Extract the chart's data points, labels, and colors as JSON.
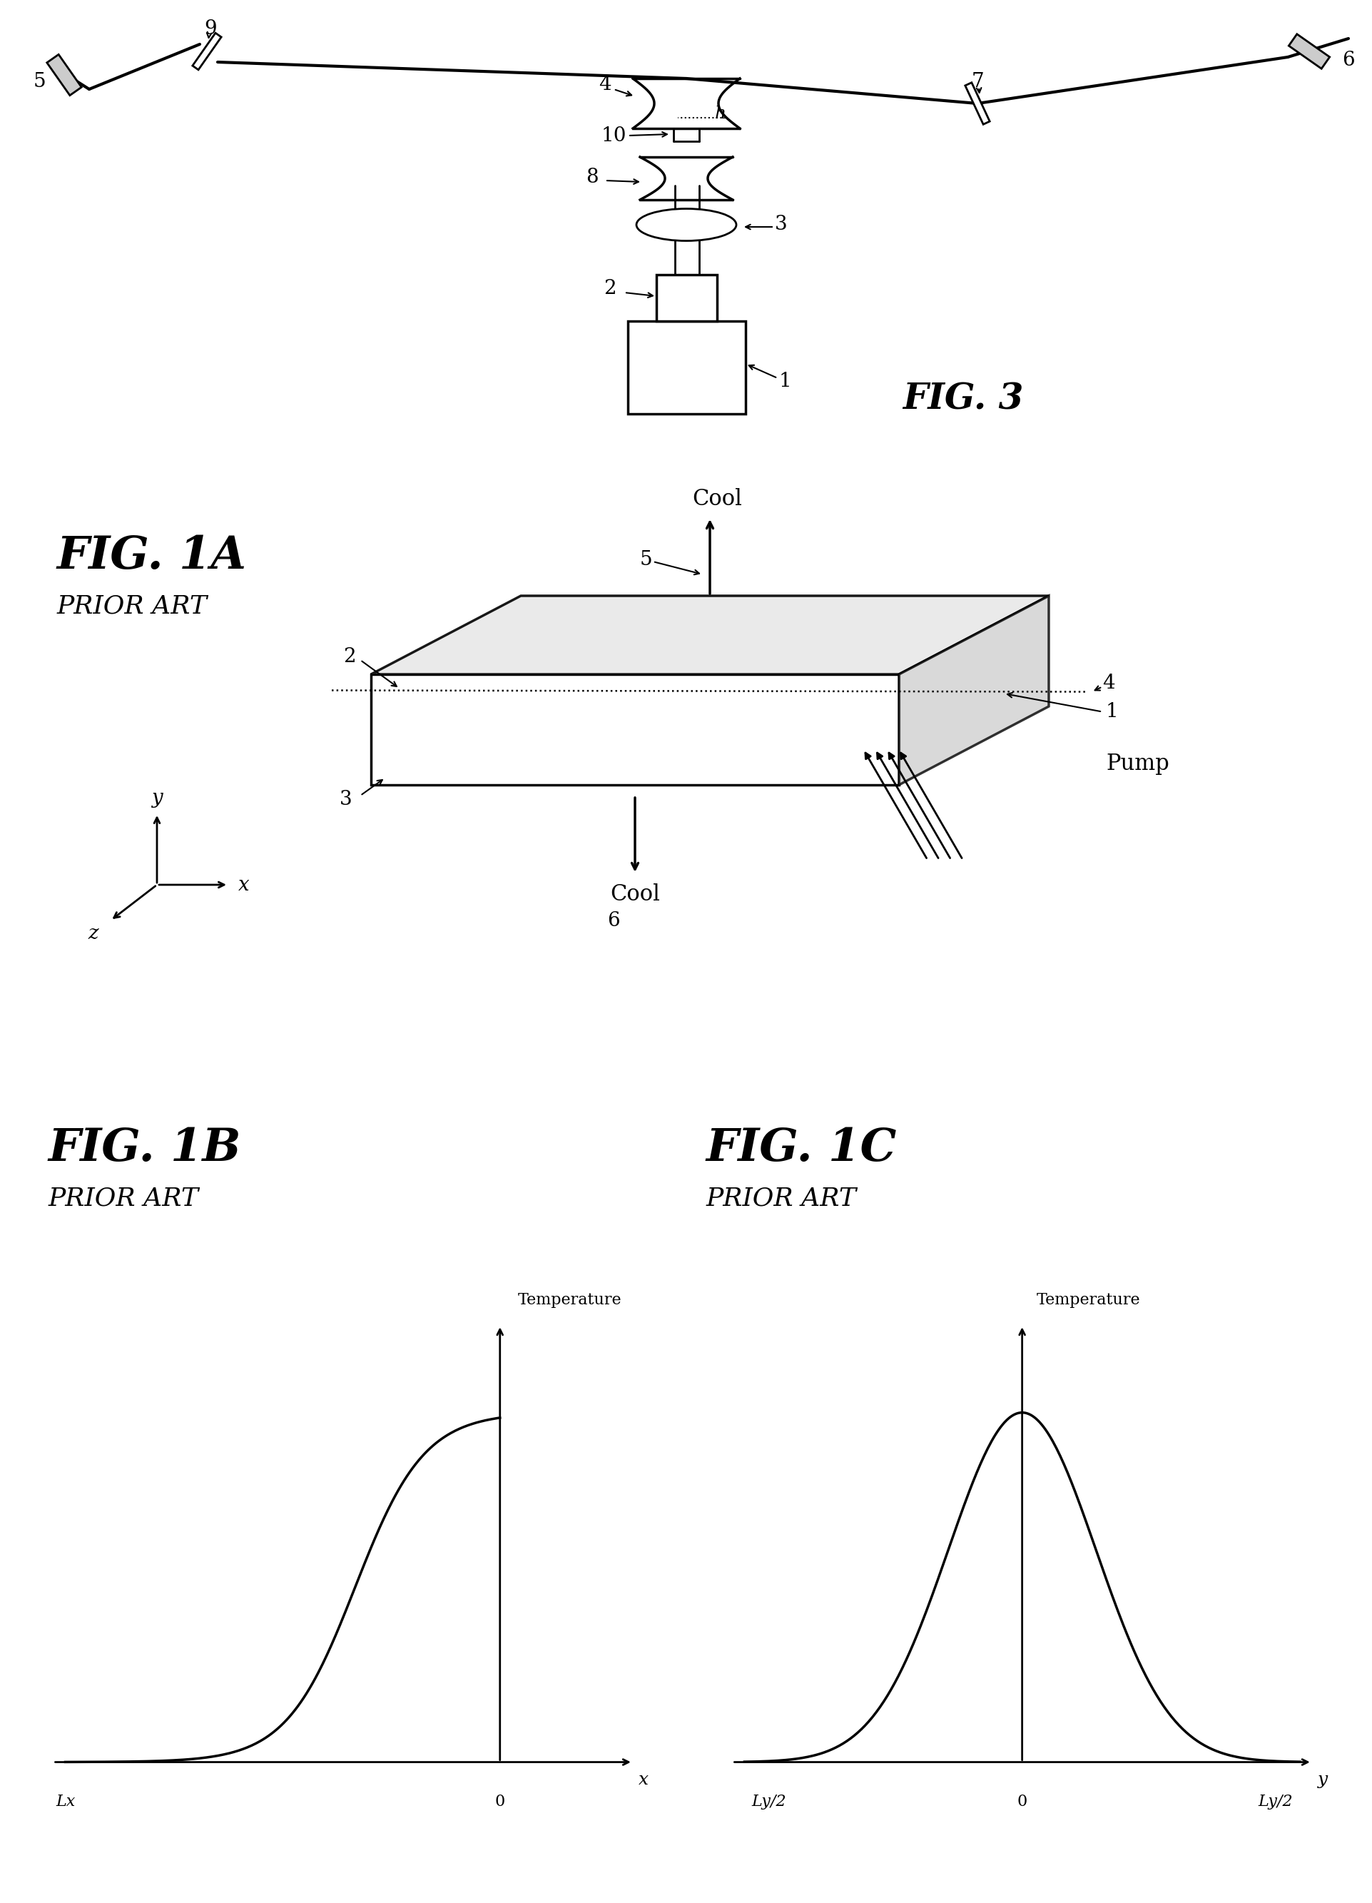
{
  "bg_color": "#ffffff",
  "line_color": "#000000",
  "fig3_title": "FIG. 3",
  "fig1a_title": "FIG. 1A",
  "fig1b_title": "FIG. 1B",
  "fig1c_title": "FIG. 1C",
  "prior_art": "PRIOR ART"
}
